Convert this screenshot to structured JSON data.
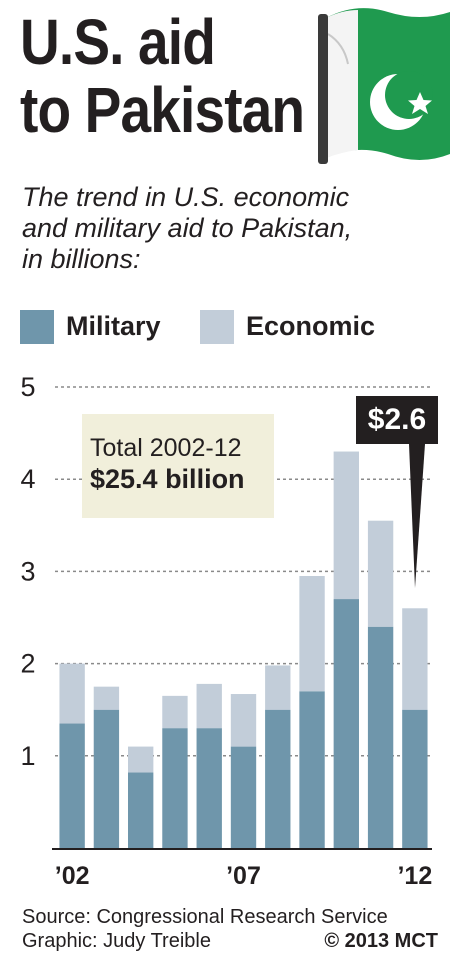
{
  "title": {
    "line1": "U.S. aid",
    "line2": "to Pakistan"
  },
  "subtitle": {
    "line1": "The trend in U.S. economic",
    "line2": "and military aid to Pakistan,",
    "line3": "in billions:"
  },
  "legend": {
    "military": {
      "label": "Military",
      "color": "#6f96ab"
    },
    "economic": {
      "label": "Economic",
      "color": "#c2cdd9"
    }
  },
  "annotation": {
    "total_label": "Total 2002-12",
    "total_value": "$25.4 billion",
    "callout": "$2.6"
  },
  "footer": {
    "source": "Source: Congressional Research Service",
    "credit": "Graphic: Judy Treible",
    "copyright": "© 2013 MCT"
  },
  "chart_data": {
    "type": "bar",
    "stacked": true,
    "categories": [
      "2002",
      "2003",
      "2004",
      "2005",
      "2006",
      "2007",
      "2008",
      "2009",
      "2010",
      "2011",
      "2012"
    ],
    "series": [
      {
        "name": "Military",
        "values": [
          1.35,
          1.5,
          0.82,
          1.3,
          1.3,
          1.1,
          1.5,
          1.7,
          2.7,
          2.4,
          1.5
        ]
      },
      {
        "name": "Economic",
        "values": [
          0.65,
          0.25,
          0.28,
          0.35,
          0.48,
          0.57,
          0.48,
          1.25,
          1.6,
          1.15,
          1.1
        ]
      }
    ],
    "xtick_labels": [
      {
        "index": 0,
        "text": "’02"
      },
      {
        "index": 5,
        "text": "’07"
      },
      {
        "index": 10,
        "text": "’12"
      }
    ],
    "yticks": [
      1,
      2,
      3,
      4,
      5
    ],
    "ylim": [
      0,
      5
    ],
    "grid": true,
    "legend_position": "top-left"
  }
}
